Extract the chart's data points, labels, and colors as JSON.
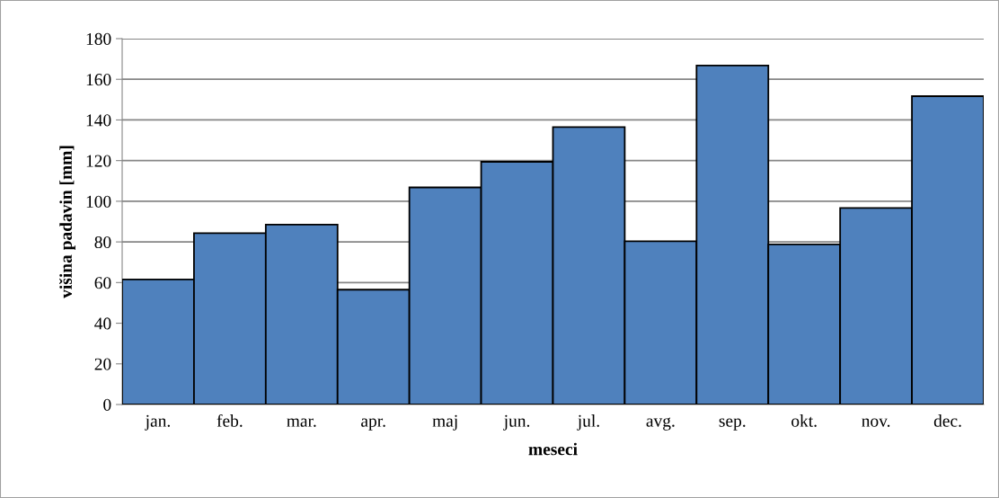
{
  "chart_data": {
    "type": "bar",
    "xlabel": "meseci",
    "ylabel": "višina padavin [mm]",
    "categories": [
      "jan.",
      "feb.",
      "mar.",
      "apr.",
      "maj",
      "jun.",
      "jul.",
      "avg.",
      "sep.",
      "okt.",
      "nov.",
      "dec."
    ],
    "values": [
      61.5,
      84.3,
      88.5,
      56.5,
      106.8,
      119.4,
      136.5,
      80.3,
      166.8,
      78.8,
      96.7,
      151.7
    ],
    "color": "#4f81bd",
    "ylim": [
      0,
      180
    ],
    "yticks": [
      0,
      20,
      40,
      60,
      80,
      100,
      120,
      140,
      160,
      180
    ],
    "grid": "y"
  }
}
